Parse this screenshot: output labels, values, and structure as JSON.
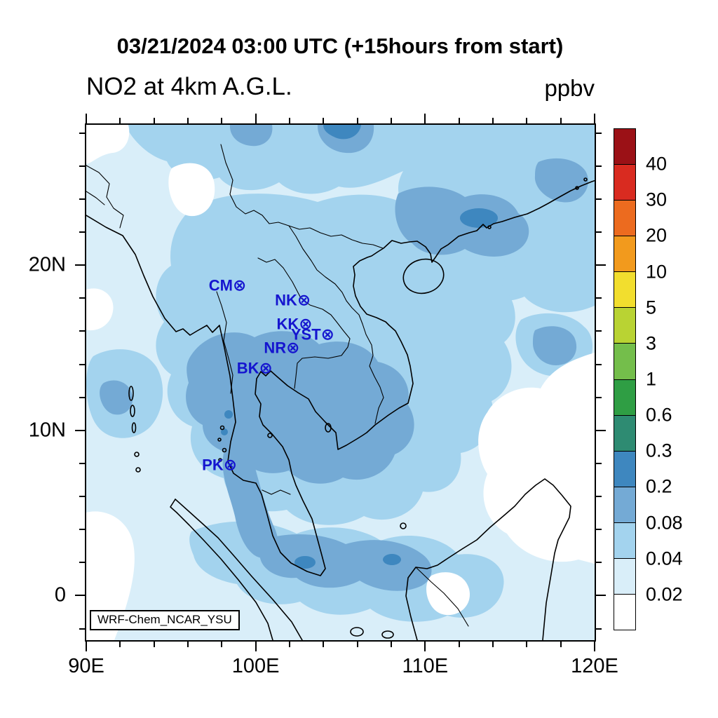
{
  "figure": {
    "title": "03/21/2024 03:00 UTC (+15hours from start)",
    "variable_label": "NO2 at 4km A.G.L.",
    "units_label": "ppbv",
    "model_label": "WRF-Chem_NCAR_YSU"
  },
  "axes": {
    "lon_min": 90,
    "lon_max": 120,
    "lat_min": -2.7,
    "lat_max": 28.5,
    "minor_tick_step_deg": 2,
    "major_tick_step_deg": 10,
    "x_ticks": [
      {
        "lon": 90,
        "label": "90E"
      },
      {
        "lon": 100,
        "label": "100E"
      },
      {
        "lon": 110,
        "label": "110E"
      },
      {
        "lon": 120,
        "label": "120E"
      }
    ],
    "y_ticks": [
      {
        "lat": 0,
        "label": "0"
      },
      {
        "lat": 10,
        "label": "10N"
      },
      {
        "lat": 20,
        "label": "20N"
      }
    ]
  },
  "colorbar": {
    "labels_top_to_bottom": [
      "40",
      "30",
      "20",
      "10",
      "5",
      "3",
      "1",
      "0.6",
      "0.3",
      "0.2",
      "0.08",
      "0.04",
      "0.02"
    ],
    "colors_bottom_to_top": [
      "#FFFFFF",
      "#D9EEF9",
      "#A3D3EE",
      "#74AAD5",
      "#3E87BF",
      "#2E8B72",
      "#2F9E44",
      "#74BE4B",
      "#B9D333",
      "#F2DE2E",
      "#F29A1D",
      "#EC6B1F",
      "#D92B20",
      "#9B1116"
    ]
  },
  "stations": {
    "color": "#1515CF",
    "marker": "⊗",
    "list": [
      {
        "name": "CM",
        "lon": 98.95,
        "lat": 18.8
      },
      {
        "name": "NK",
        "lon": 102.75,
        "lat": 17.9
      },
      {
        "name": "KK",
        "lon": 102.85,
        "lat": 16.45
      },
      {
        "name": "YST",
        "lon": 104.15,
        "lat": 15.8
      },
      {
        "name": "NR",
        "lon": 102.1,
        "lat": 15.0
      },
      {
        "name": "BK",
        "lon": 100.5,
        "lat": 13.75
      },
      {
        "name": "PK",
        "lon": 98.4,
        "lat": 7.9
      }
    ]
  },
  "chart_data": {
    "type": "heatmap",
    "title": "NO2 at 4km A.G.L.",
    "valid_time": "03/21/2024 03:00 UTC (+15hours from start)",
    "units": "ppbv",
    "legend_position": "right",
    "extent": {
      "lon": [
        90,
        120
      ],
      "lat": [
        -2.7,
        28.5
      ]
    },
    "contour_levels_ppbv": [
      0.02,
      0.04,
      0.08,
      0.2,
      0.3,
      0.6,
      1,
      3,
      5,
      10,
      20,
      30,
      40
    ],
    "displayed_value_range_ppbv": [
      0,
      0.3
    ],
    "notes": "Filled-contour NO2 field over Southeast Asia; map shading spans white (<0.02) through pale, light and medium blue (0.02-0.2) with small 0.2-0.3 patches; seven blue station markers plotted over Thailand."
  }
}
